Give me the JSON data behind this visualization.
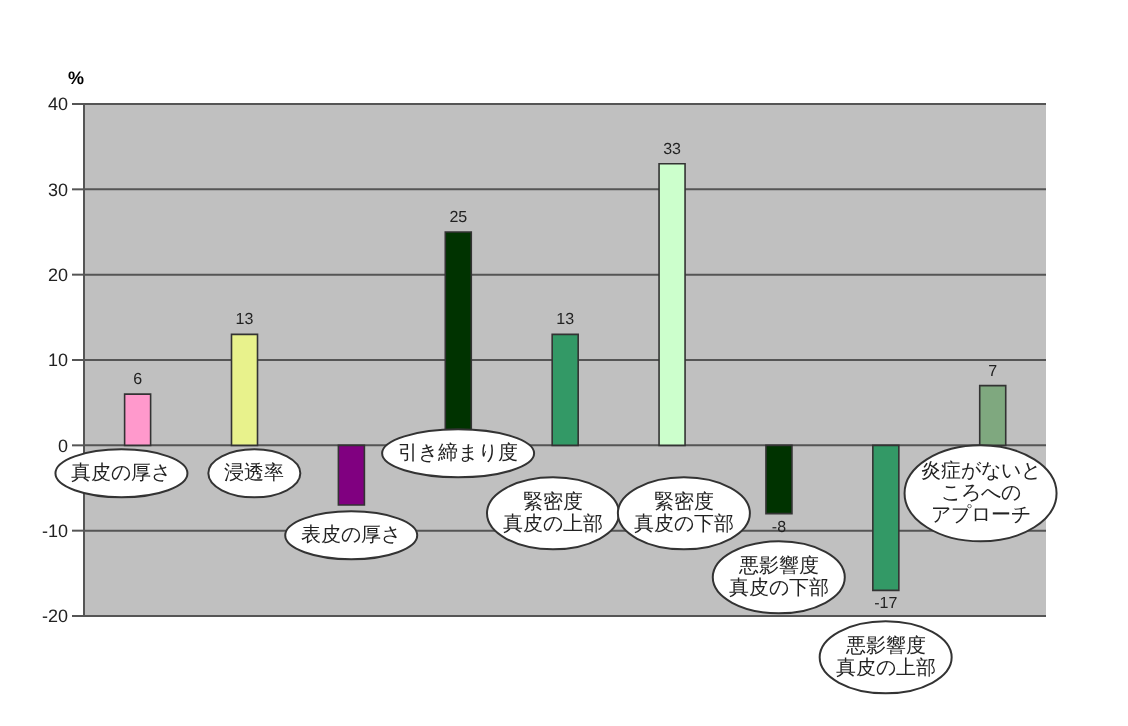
{
  "chart_data": {
    "type": "bar",
    "ylabel": "%",
    "categories": [
      "真皮の厚さ",
      "浸透率",
      "表皮の厚さ",
      "引き締まり度",
      "緊密度真皮の上部",
      "緊密度真皮の下部",
      "悪影響度真皮の下部",
      "悪影響度真皮の上部",
      "炎症がないところへのアプローチ"
    ],
    "values": [
      6,
      13,
      -7,
      25,
      13,
      33,
      -8,
      -17,
      7
    ],
    "value_labels": [
      "6",
      "13",
      null,
      "25",
      "13",
      "33",
      "-8",
      "-17",
      "7"
    ],
    "colors": [
      "#ff99cc",
      "#e8f28c",
      "#800080",
      "#003300",
      "#339966",
      "#ccffcc",
      "#003300",
      "#339966",
      "#7fa87f"
    ],
    "ylim": [
      -20,
      40
    ],
    "yticks": [
      -20,
      -10,
      0,
      10,
      20,
      30,
      40
    ],
    "grid": "y"
  }
}
